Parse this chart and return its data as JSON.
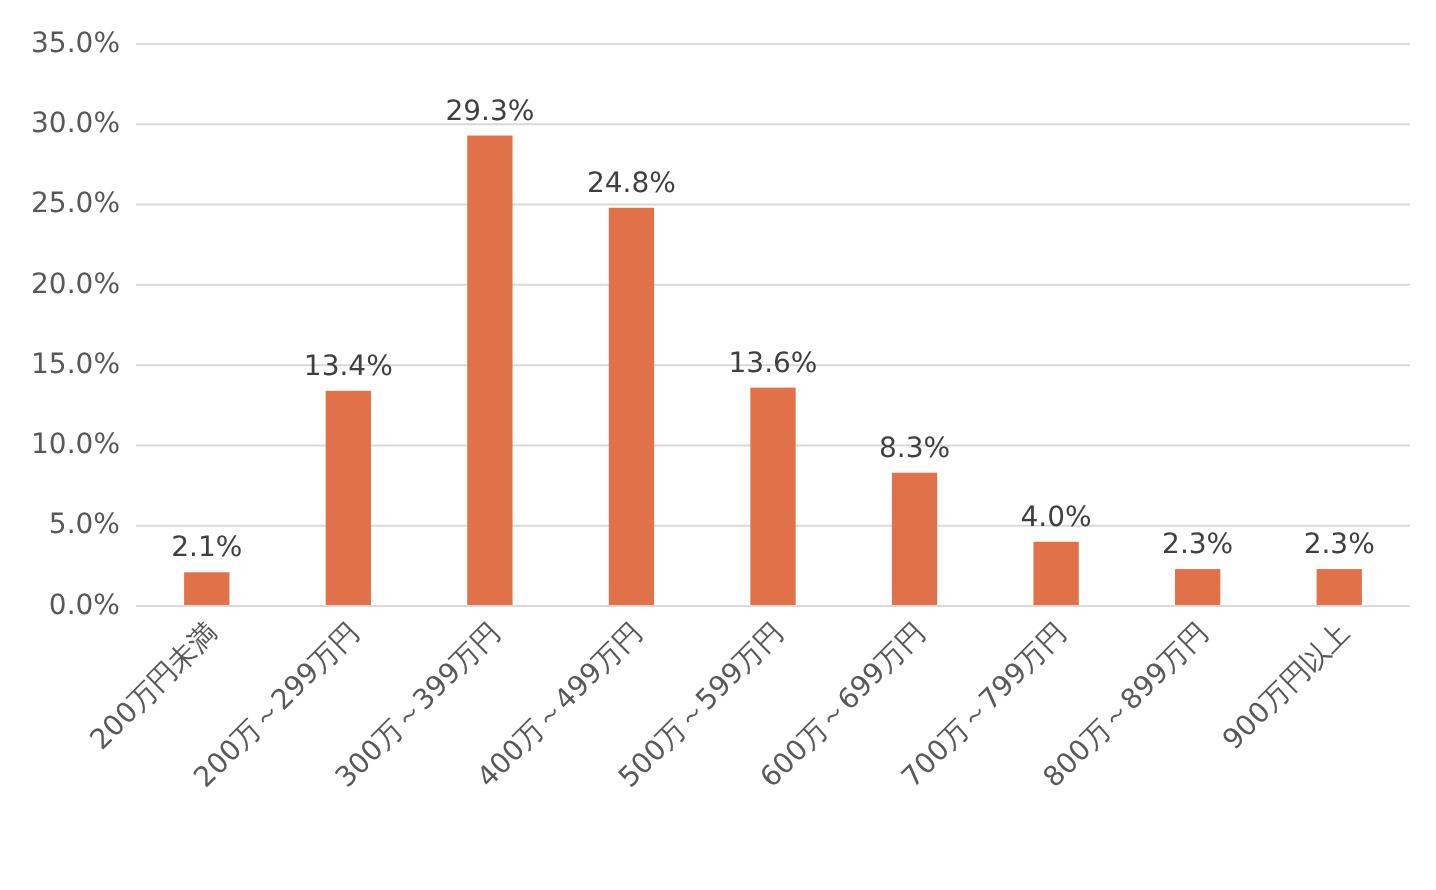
{
  "chart_data": {
    "type": "bar",
    "categories": [
      "200万円未満",
      "200万～299万円",
      "300万～399万円",
      "400万～499万円",
      "500万～599万円",
      "600万～699万円",
      "700万～799万円",
      "800万～899万円",
      "900万円以上"
    ],
    "values": [
      2.1,
      13.4,
      29.3,
      24.8,
      13.6,
      8.3,
      4.0,
      2.3,
      2.3
    ],
    "value_labels": [
      "2.1%",
      "13.4%",
      "29.3%",
      "24.8%",
      "13.6%",
      "8.3%",
      "4.0%",
      "2.3%",
      "2.3%"
    ],
    "color": "#e07149",
    "ylim": [
      0,
      35
    ],
    "yticks": [
      {
        "value": 0,
        "label": "0.0%"
      },
      {
        "value": 5,
        "label": "5.0%"
      },
      {
        "value": 10,
        "label": "10.0%"
      },
      {
        "value": 15,
        "label": "15.0%"
      },
      {
        "value": 20,
        "label": "20.0%"
      },
      {
        "value": 25,
        "label": "25.0%"
      },
      {
        "value": 30,
        "label": "30.0%"
      },
      {
        "value": 35,
        "label": "35.0%"
      }
    ],
    "grid": "y"
  }
}
